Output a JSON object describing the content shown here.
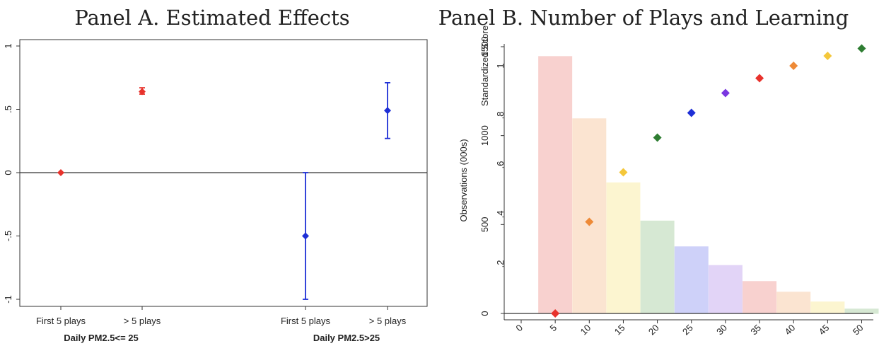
{
  "chart_data": [
    {
      "type": "scatter",
      "title": "Panel A. Estimated Effects",
      "ylim": [
        -1,
        1
      ],
      "yticks": [
        1,
        0.5,
        0,
        -0.5,
        -1
      ],
      "ytick_labels": [
        "1",
        ".5",
        "0",
        "-.5",
        "-1"
      ],
      "grid": false,
      "reference_line": 0,
      "categories": [
        "First 5 plays",
        "> 5 plays",
        "First 5 plays",
        "> 5 plays"
      ],
      "groups": [
        "Daily PM2.5<= 25",
        "Daily PM2.5>25"
      ],
      "points": [
        {
          "category": "First 5 plays",
          "group": "Daily PM2.5<= 25",
          "y": 0.0,
          "lo": 0.0,
          "hi": 0.0,
          "color": "#e8322c"
        },
        {
          "category": "> 5 plays",
          "group": "Daily PM2.5<= 25",
          "y": 0.64,
          "lo": 0.62,
          "hi": 0.67,
          "color": "#e8322c"
        },
        {
          "category": "First 5 plays",
          "group": "Daily PM2.5>25",
          "y": -0.5,
          "lo": -1.0,
          "hi": 0.0,
          "color": "#1e2fd6"
        },
        {
          "category": "> 5 plays",
          "group": "Daily PM2.5>25",
          "y": 0.49,
          "lo": 0.27,
          "hi": 0.71,
          "color": "#1e2fd6"
        }
      ]
    },
    {
      "type": "bar",
      "title": "Panel B. Number of Plays and Learning",
      "xticks": [
        0,
        5,
        10,
        15,
        20,
        25,
        30,
        35,
        40,
        45,
        50
      ],
      "ylabel_left": "Observations (000s)",
      "ylim_left": [
        0,
        1500
      ],
      "yticks_left": [
        0,
        500,
        1000,
        1500
      ],
      "ylabel_right": "Standardized Score",
      "ylim_right": [
        0,
        1.08
      ],
      "yticks_right": [
        0.2,
        0.4,
        0.6,
        0.8,
        1
      ],
      "ytick_labels_right": [
        ".2",
        ".4",
        ".6",
        ".8",
        "1"
      ],
      "grid": false,
      "bars": {
        "x": [
          5,
          10,
          15,
          20,
          25,
          30,
          35,
          40,
          45,
          50
        ],
        "values": [
          1445,
          1095,
          735,
          520,
          375,
          270,
          180,
          120,
          65,
          25
        ],
        "colors": [
          "#f7c9c7",
          "#fbe0c9",
          "#fcf4c8",
          "#cfe4cc",
          "#c6c9f8",
          "#ddcdf6",
          "#f7c9c7",
          "#fbe0c9",
          "#fcf4c8",
          "#cfe4cc"
        ]
      },
      "score": {
        "x": [
          5,
          10,
          15,
          20,
          25,
          30,
          35,
          40,
          45,
          50
        ],
        "values": [
          0.0,
          0.37,
          0.57,
          0.71,
          0.81,
          0.89,
          0.95,
          1.0,
          1.04,
          1.07
        ],
        "colors": [
          "#e8322c",
          "#ee8a37",
          "#f4c73a",
          "#2e7d32",
          "#1e2fd6",
          "#7a36e0",
          "#e8322c",
          "#ee8a37",
          "#f4c73a",
          "#2e7d32"
        ]
      }
    }
  ]
}
